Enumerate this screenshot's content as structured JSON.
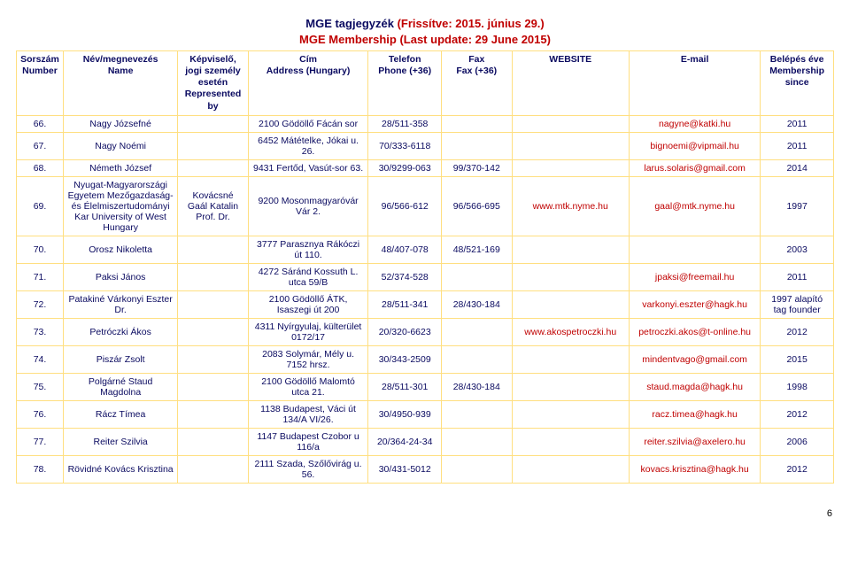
{
  "title": {
    "hu_prefix": "MGE tagjegyzék",
    "hu_suffix": " (Frissítve: 2015. június 29.)",
    "en": "MGE Membership (Last update: 29 June 2015)"
  },
  "headers": [
    {
      "hu": "Sorszám",
      "en": "Number"
    },
    {
      "hu": "Név/megnevezés",
      "en": "Name"
    },
    {
      "hu": "Képviselő, jogi személy esetén",
      "en": "Represented by"
    },
    {
      "hu": "Cím",
      "en": "Address (Hungary)"
    },
    {
      "hu": "Telefon",
      "en": "Phone (+36)"
    },
    {
      "hu": "Fax",
      "en": "Fax (+36)"
    },
    {
      "hu": "WEBSITE",
      "en": ""
    },
    {
      "hu": "E-mail",
      "en": ""
    },
    {
      "hu": "Belépés éve",
      "en": "Membership since"
    }
  ],
  "rows": [
    {
      "n": "66.",
      "name": "Nagy Józsefné",
      "rep": "",
      "addr": "2100 Gödöllő Fácán sor",
      "tel": "28/511-358",
      "fax": "",
      "web": "",
      "email": "nagyne@katki.hu",
      "year": "2011"
    },
    {
      "n": "67.",
      "name": "Nagy Noémi",
      "rep": "",
      "addr": "6452 Mátételke, Jókai u. 26.",
      "tel": "70/333-6118",
      "fax": "",
      "web": "",
      "email": "bignoemi@vipmail.hu",
      "year": "2011"
    },
    {
      "n": "68.",
      "name": "Németh József",
      "rep": "",
      "addr": "9431 Fertőd, Vasút-sor 63.",
      "tel": "30/9299-063",
      "fax": "99/370-142",
      "web": "",
      "email": "larus.solaris@gmail.com",
      "year": "2014"
    },
    {
      "n": "69.",
      "name": "Nyugat-Magyarországi Egyetem Mezőgazdaság- és Élelmiszertudományi Kar University of West Hungary",
      "rep": "Kovácsné Gaál Katalin Prof. Dr.",
      "addr": "9200 Mosonmagyaróvár Vár 2.",
      "tel": "96/566-612",
      "fax": "96/566-695",
      "web": "www.mtk.nyme.hu",
      "email": "gaal@mtk.nyme.hu",
      "year": "1997"
    },
    {
      "n": "70.",
      "name": "Orosz Nikoletta",
      "rep": "",
      "addr": "3777 Parasznya Rákóczi út 110.",
      "tel": "48/407-078",
      "fax": "48/521-169",
      "web": "",
      "email": "",
      "year": "2003"
    },
    {
      "n": "71.",
      "name": "Paksi János",
      "rep": "",
      "addr": "4272 Sáránd Kossuth L. utca 59/B",
      "tel": "52/374-528",
      "fax": "",
      "web": "",
      "email": "jpaksi@freemail.hu",
      "year": "2011"
    },
    {
      "n": "72.",
      "name": "Patakiné Várkonyi Eszter Dr.",
      "rep": "",
      "addr": "2100 Gödöllő ÁTK, Isaszegi út 200",
      "tel": "28/511-341",
      "fax": "28/430-184",
      "web": "",
      "email": "varkonyi.eszter@hagk.hu",
      "year": "1997 alapító tag founder"
    },
    {
      "n": "73.",
      "name": "Petróczki Ákos",
      "rep": "",
      "addr": "4311 Nyírgyulaj, külterület 0172/17",
      "tel": "20/320-6623",
      "fax": "",
      "web": "www.akospetroczki.hu",
      "email": "petroczki.akos@t-online.hu",
      "year": "2012"
    },
    {
      "n": "74.",
      "name": "Piszár Zsolt",
      "rep": "",
      "addr": "2083 Solymár, Mély u. 7152 hrsz.",
      "tel": "30/343-2509",
      "fax": "",
      "web": "",
      "email": "mindentvago@gmail.com",
      "year": "2015"
    },
    {
      "n": "75.",
      "name": "Polgárné Staud Magdolna",
      "rep": "",
      "addr": "2100 Gödöllő Malomtó utca 21.",
      "tel": "28/511-301",
      "fax": "28/430-184",
      "web": "",
      "email": "staud.magda@hagk.hu",
      "year": "1998"
    },
    {
      "n": "76.",
      "name": "Rácz Tímea",
      "rep": "",
      "addr": "1138 Budapest, Váci út 134/A VI/26.",
      "tel": "30/4950-939",
      "fax": "",
      "web": "",
      "email": "racz.timea@hagk.hu",
      "year": "2012"
    },
    {
      "n": "77.",
      "name": "Reiter Szilvia",
      "rep": "",
      "addr": "1147 Budapest Czobor u 116/a",
      "tel": "20/364-24-34",
      "fax": "",
      "web": "",
      "email": "reiter.szilvia@axelero.hu",
      "year": "2006"
    },
    {
      "n": "78.",
      "name": "Rövidné Kovács Krisztina",
      "rep": "",
      "addr": "2111 Szada, Szőlővirág u. 56.",
      "tel": "30/431-5012",
      "fax": "",
      "web": "",
      "email": "kovacs.krisztina@hagk.hu",
      "year": "2012"
    }
  ],
  "page_number": "6"
}
